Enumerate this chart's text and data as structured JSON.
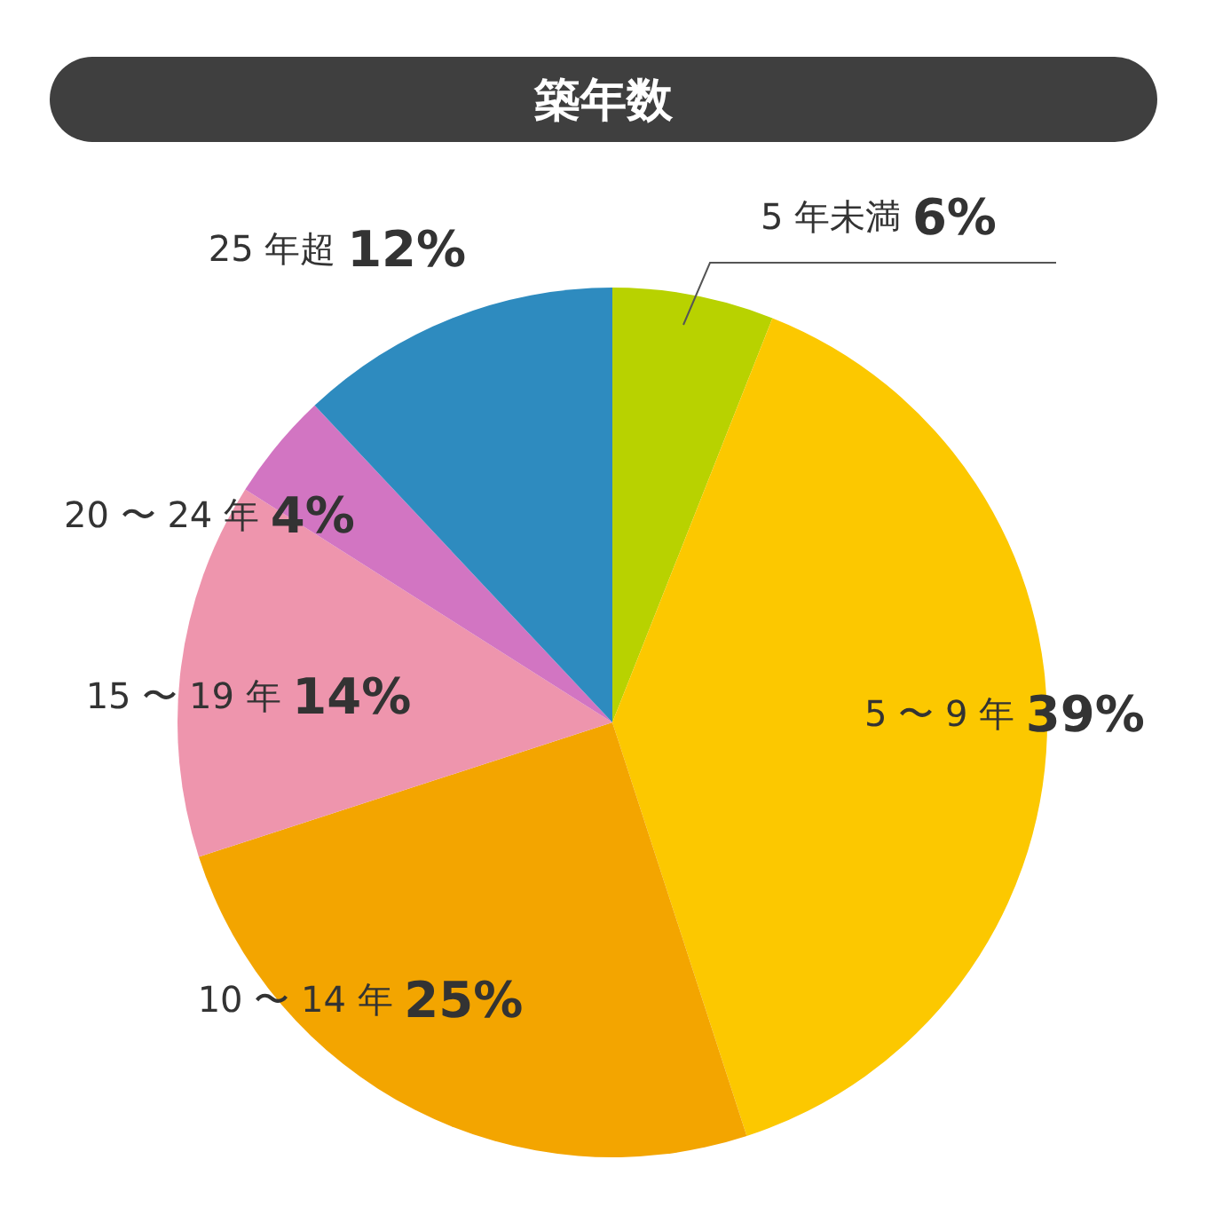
{
  "chart_data": {
    "type": "pie",
    "title": "築年数",
    "categories": [
      "5 年未満",
      "5 〜 9 年",
      "10 〜 14 年",
      "15 〜 19 年",
      "20 〜 24 年",
      "25 年超"
    ],
    "values": [
      6,
      39,
      25,
      14,
      4,
      12
    ],
    "value_labels": [
      "6%",
      "39%",
      "25%",
      "14%",
      "4%",
      "12%"
    ],
    "colors": [
      "#b8d200",
      "#fcc800",
      "#f3a500",
      "#ee95ad",
      "#d275c2",
      "#2e8bbf"
    ],
    "legend": false
  }
}
